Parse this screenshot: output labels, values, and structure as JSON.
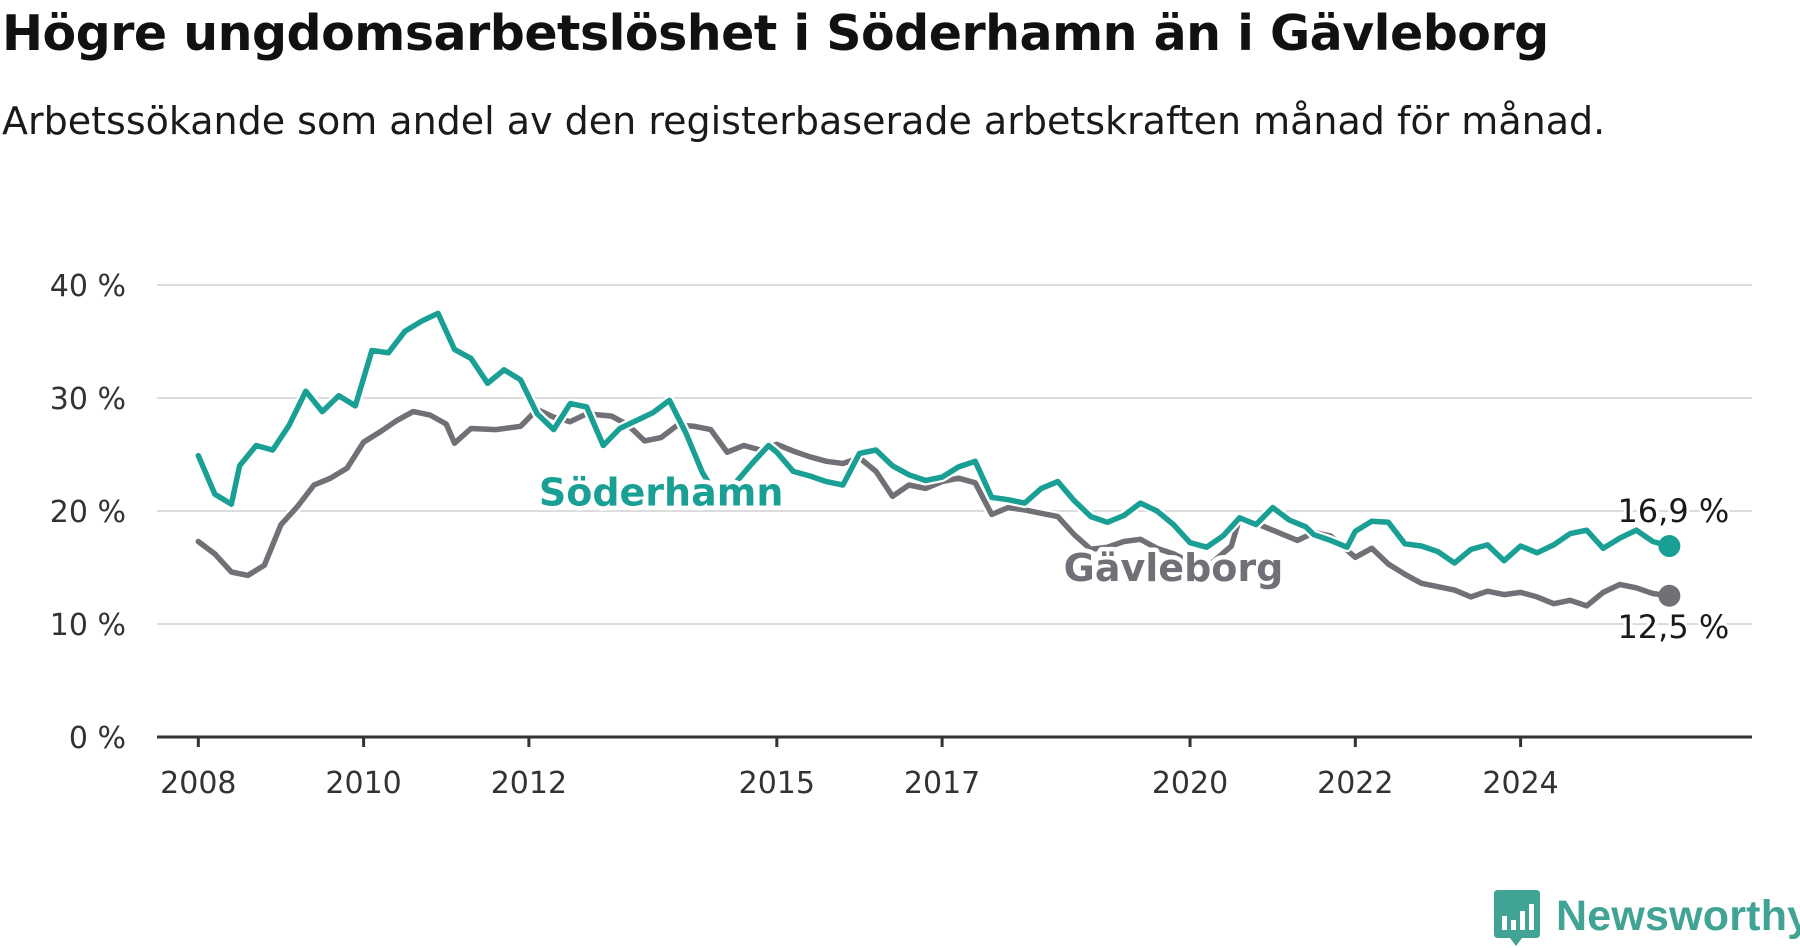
{
  "title": "Högre ungdomsarbetslöshet i Söderhamn än i Gävleborg",
  "subtitle": "Arbetssökande som andel av den registerbaserade arbetskraften månad för månad.",
  "brand": {
    "name": "Newsworthy",
    "icon": "newsworthy-chart-icon",
    "color": "#40a394"
  },
  "chart_data": {
    "type": "line",
    "title": "Högre ungdomsarbetslöshet i Söderhamn än i Gävleborg",
    "xlabel": "",
    "ylabel": "",
    "ylim": [
      0,
      40
    ],
    "xlim": [
      2007.5,
      2026.8
    ],
    "y_ticks": [
      0,
      10,
      20,
      30,
      40
    ],
    "y_tick_labels": [
      "0 %",
      "10 %",
      "20 %",
      "30 %",
      "40 %"
    ],
    "x_ticks": [
      2008,
      2010,
      2012,
      2015,
      2017,
      2020,
      2022,
      2024
    ],
    "x_tick_labels": [
      "2008",
      "2010",
      "2012",
      "2015",
      "2017",
      "2020",
      "2022",
      "2024"
    ],
    "grid": true,
    "series": [
      {
        "name": "Gävleborg",
        "color": "#717076",
        "end_label": "12,5 %",
        "points": [
          [
            2008.0,
            17.3
          ],
          [
            2008.2,
            16.2
          ],
          [
            2008.4,
            14.6
          ],
          [
            2008.6,
            14.3
          ],
          [
            2008.8,
            15.2
          ],
          [
            2009.0,
            18.8
          ],
          [
            2009.2,
            20.4
          ],
          [
            2009.4,
            22.3
          ],
          [
            2009.6,
            22.9
          ],
          [
            2009.8,
            23.8
          ],
          [
            2010.0,
            26.1
          ],
          [
            2010.2,
            27.0
          ],
          [
            2010.4,
            28.0
          ],
          [
            2010.6,
            28.8
          ],
          [
            2010.8,
            28.5
          ],
          [
            2011.0,
            27.7
          ],
          [
            2011.1,
            26.0
          ],
          [
            2011.3,
            27.3
          ],
          [
            2011.6,
            27.2
          ],
          [
            2011.9,
            27.5
          ],
          [
            2012.1,
            29.0
          ],
          [
            2012.3,
            28.3
          ],
          [
            2012.5,
            27.9
          ],
          [
            2012.7,
            28.6
          ],
          [
            2013.0,
            28.4
          ],
          [
            2013.2,
            27.6
          ],
          [
            2013.4,
            26.2
          ],
          [
            2013.6,
            26.5
          ],
          [
            2013.8,
            27.6
          ],
          [
            2014.0,
            27.5
          ],
          [
            2014.2,
            27.2
          ],
          [
            2014.4,
            25.2
          ],
          [
            2014.6,
            25.8
          ],
          [
            2014.8,
            25.4
          ],
          [
            2015.0,
            25.9
          ],
          [
            2015.2,
            25.3
          ],
          [
            2015.4,
            24.8
          ],
          [
            2015.6,
            24.4
          ],
          [
            2015.8,
            24.2
          ],
          [
            2016.0,
            24.7
          ],
          [
            2016.2,
            23.5
          ],
          [
            2016.4,
            21.3
          ],
          [
            2016.6,
            22.3
          ],
          [
            2016.8,
            22.0
          ],
          [
            2017.0,
            22.6
          ],
          [
            2017.2,
            22.9
          ],
          [
            2017.4,
            22.5
          ],
          [
            2017.6,
            19.7
          ],
          [
            2017.8,
            20.3
          ],
          [
            2018.0,
            20.1
          ],
          [
            2018.2,
            19.8
          ],
          [
            2018.4,
            19.5
          ],
          [
            2018.6,
            17.9
          ],
          [
            2018.8,
            16.6
          ],
          [
            2019.0,
            16.8
          ],
          [
            2019.2,
            17.3
          ],
          [
            2019.4,
            17.5
          ],
          [
            2019.6,
            16.7
          ],
          [
            2019.8,
            16.2
          ],
          [
            2020.0,
            15.5
          ],
          [
            2020.2,
            15.0
          ],
          [
            2020.5,
            16.9
          ],
          [
            2020.6,
            19.4
          ],
          [
            2020.8,
            18.9
          ],
          [
            2021.0,
            18.3
          ],
          [
            2021.3,
            17.4
          ],
          [
            2021.5,
            18.1
          ],
          [
            2021.7,
            17.8
          ],
          [
            2022.0,
            15.9
          ],
          [
            2022.2,
            16.7
          ],
          [
            2022.4,
            15.3
          ],
          [
            2022.6,
            14.4
          ],
          [
            2022.8,
            13.6
          ],
          [
            2023.0,
            13.3
          ],
          [
            2023.2,
            13.0
          ],
          [
            2023.4,
            12.4
          ],
          [
            2023.6,
            12.9
          ],
          [
            2023.8,
            12.6
          ],
          [
            2024.0,
            12.8
          ],
          [
            2024.2,
            12.4
          ],
          [
            2024.4,
            11.8
          ],
          [
            2024.6,
            12.1
          ],
          [
            2024.8,
            11.6
          ],
          [
            2025.0,
            12.8
          ],
          [
            2025.2,
            13.5
          ],
          [
            2025.4,
            13.2
          ],
          [
            2025.6,
            12.7
          ],
          [
            2025.8,
            12.5
          ]
        ]
      },
      {
        "name": "Söderhamn",
        "color": "#1a9f95",
        "end_label": "16,9 %",
        "points": [
          [
            2008.0,
            24.9
          ],
          [
            2008.2,
            21.5
          ],
          [
            2008.4,
            20.6
          ],
          [
            2008.5,
            24.0
          ],
          [
            2008.7,
            25.8
          ],
          [
            2008.9,
            25.4
          ],
          [
            2009.1,
            27.6
          ],
          [
            2009.3,
            30.6
          ],
          [
            2009.5,
            28.8
          ],
          [
            2009.7,
            30.2
          ],
          [
            2009.9,
            29.3
          ],
          [
            2010.1,
            34.2
          ],
          [
            2010.3,
            34.0
          ],
          [
            2010.5,
            35.9
          ],
          [
            2010.7,
            36.8
          ],
          [
            2010.9,
            37.5
          ],
          [
            2011.1,
            34.3
          ],
          [
            2011.3,
            33.5
          ],
          [
            2011.5,
            31.3
          ],
          [
            2011.7,
            32.5
          ],
          [
            2011.9,
            31.6
          ],
          [
            2012.1,
            28.6
          ],
          [
            2012.3,
            27.2
          ],
          [
            2012.5,
            29.5
          ],
          [
            2012.7,
            29.2
          ],
          [
            2012.9,
            25.8
          ],
          [
            2013.1,
            27.3
          ],
          [
            2013.3,
            28.0
          ],
          [
            2013.5,
            28.7
          ],
          [
            2013.7,
            29.8
          ],
          [
            2013.9,
            26.9
          ],
          [
            2014.1,
            23.4
          ],
          [
            2014.3,
            21.0
          ],
          [
            2014.5,
            22.5
          ],
          [
            2014.7,
            24.2
          ],
          [
            2014.9,
            25.8
          ],
          [
            2015.0,
            25.2
          ],
          [
            2015.2,
            23.5
          ],
          [
            2015.4,
            23.1
          ],
          [
            2015.6,
            22.6
          ],
          [
            2015.8,
            22.3
          ],
          [
            2016.0,
            25.1
          ],
          [
            2016.2,
            25.4
          ],
          [
            2016.4,
            24.0
          ],
          [
            2016.6,
            23.2
          ],
          [
            2016.8,
            22.7
          ],
          [
            2017.0,
            23.0
          ],
          [
            2017.2,
            23.9
          ],
          [
            2017.4,
            24.4
          ],
          [
            2017.6,
            21.2
          ],
          [
            2017.8,
            21.0
          ],
          [
            2018.0,
            20.7
          ],
          [
            2018.2,
            22.0
          ],
          [
            2018.4,
            22.6
          ],
          [
            2018.6,
            20.9
          ],
          [
            2018.8,
            19.5
          ],
          [
            2019.0,
            19.0
          ],
          [
            2019.2,
            19.6
          ],
          [
            2019.4,
            20.7
          ],
          [
            2019.6,
            20.0
          ],
          [
            2019.8,
            18.8
          ],
          [
            2020.0,
            17.2
          ],
          [
            2020.2,
            16.8
          ],
          [
            2020.4,
            17.8
          ],
          [
            2020.6,
            19.4
          ],
          [
            2020.8,
            18.8
          ],
          [
            2021.0,
            20.3
          ],
          [
            2021.2,
            19.2
          ],
          [
            2021.4,
            18.6
          ],
          [
            2021.5,
            17.9
          ],
          [
            2021.7,
            17.4
          ],
          [
            2021.9,
            16.8
          ],
          [
            2022.0,
            18.2
          ],
          [
            2022.2,
            19.1
          ],
          [
            2022.4,
            19.0
          ],
          [
            2022.6,
            17.1
          ],
          [
            2022.8,
            16.9
          ],
          [
            2023.0,
            16.4
          ],
          [
            2023.2,
            15.4
          ],
          [
            2023.4,
            16.6
          ],
          [
            2023.6,
            17.0
          ],
          [
            2023.8,
            15.6
          ],
          [
            2024.0,
            16.9
          ],
          [
            2024.2,
            16.3
          ],
          [
            2024.4,
            17.0
          ],
          [
            2024.6,
            18.0
          ],
          [
            2024.8,
            18.3
          ],
          [
            2025.0,
            16.7
          ],
          [
            2025.2,
            17.6
          ],
          [
            2025.4,
            18.3
          ],
          [
            2025.6,
            17.3
          ],
          [
            2025.8,
            16.9
          ]
        ]
      }
    ],
    "series_labels": [
      {
        "series": "Söderhamn",
        "text": "Söderhamn"
      },
      {
        "series": "Gävleborg",
        "text": "Gävleborg"
      }
    ]
  }
}
